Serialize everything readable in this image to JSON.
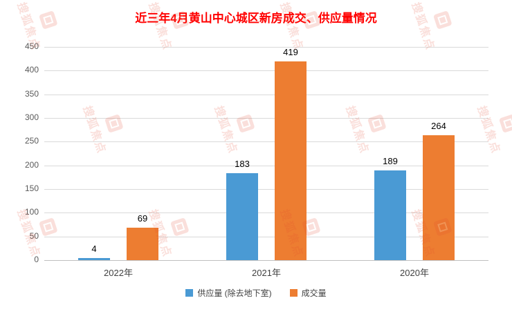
{
  "title": "近三年4月黄山中心城区新房成交、供应量情况",
  "watermark": {
    "text": "搜狐焦点",
    "color": "#e2492f"
  },
  "colors": {
    "title": "#ff0000",
    "grid": "#d9d9d9",
    "axis_text": "#595959",
    "label_text": "#000000",
    "background": "#ffffff"
  },
  "chart_data": {
    "type": "bar",
    "title": "近三年4月黄山中心城区新房成交、供应量情况",
    "categories": [
      "2022年",
      "2021年",
      "2020年"
    ],
    "series": [
      {
        "name": "供应量 (除去地下室)",
        "color": "#4a9ad4",
        "values": [
          4,
          183,
          189
        ]
      },
      {
        "name": "成交量",
        "color": "#ed7d31",
        "values": [
          69,
          419,
          264
        ]
      }
    ],
    "ylim": [
      0,
      450
    ],
    "ytick_step": 50,
    "yticks": [
      0,
      50,
      100,
      150,
      200,
      250,
      300,
      350,
      400,
      450
    ],
    "grid": true,
    "legend_position": "bottom",
    "data_labels": true,
    "xlabel": "",
    "ylabel": ""
  }
}
